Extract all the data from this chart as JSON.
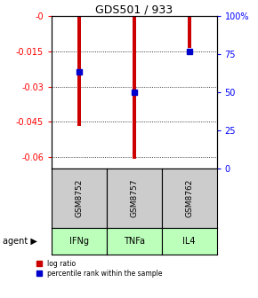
{
  "title": "GDS501 / 933",
  "categories": [
    "IFNg",
    "TNFa",
    "IL4"
  ],
  "gsm_labels": [
    "GSM8752",
    "GSM8757",
    "GSM8762"
  ],
  "log_ratios": [
    -0.047,
    -0.061,
    -0.0135
  ],
  "percentile_ranks": [
    0.635,
    0.5,
    0.769
  ],
  "ylim_left": [
    -0.065,
    0.0
  ],
  "yticks_left": [
    0,
    -0.015,
    -0.03,
    -0.045,
    -0.06
  ],
  "ytick_labels_left": [
    "-0",
    "-0.015",
    "-0.03",
    "-0.045",
    "-0.06"
  ],
  "yticks_right": [
    0.0,
    0.25,
    0.5,
    0.75,
    1.0
  ],
  "ytick_labels_right": [
    "0",
    "25",
    "50",
    "75",
    "100%"
  ],
  "bar_color": "#cc0000",
  "dot_color": "#0000cc",
  "gsm_box_color": "#cccccc",
  "agent_box_color": "#bbffbb",
  "background_color": "#ffffff",
  "bar_width": 0.06,
  "dot_size": 5,
  "title_fontsize": 9,
  "tick_fontsize": 7,
  "legend_fontsize": 5.5
}
